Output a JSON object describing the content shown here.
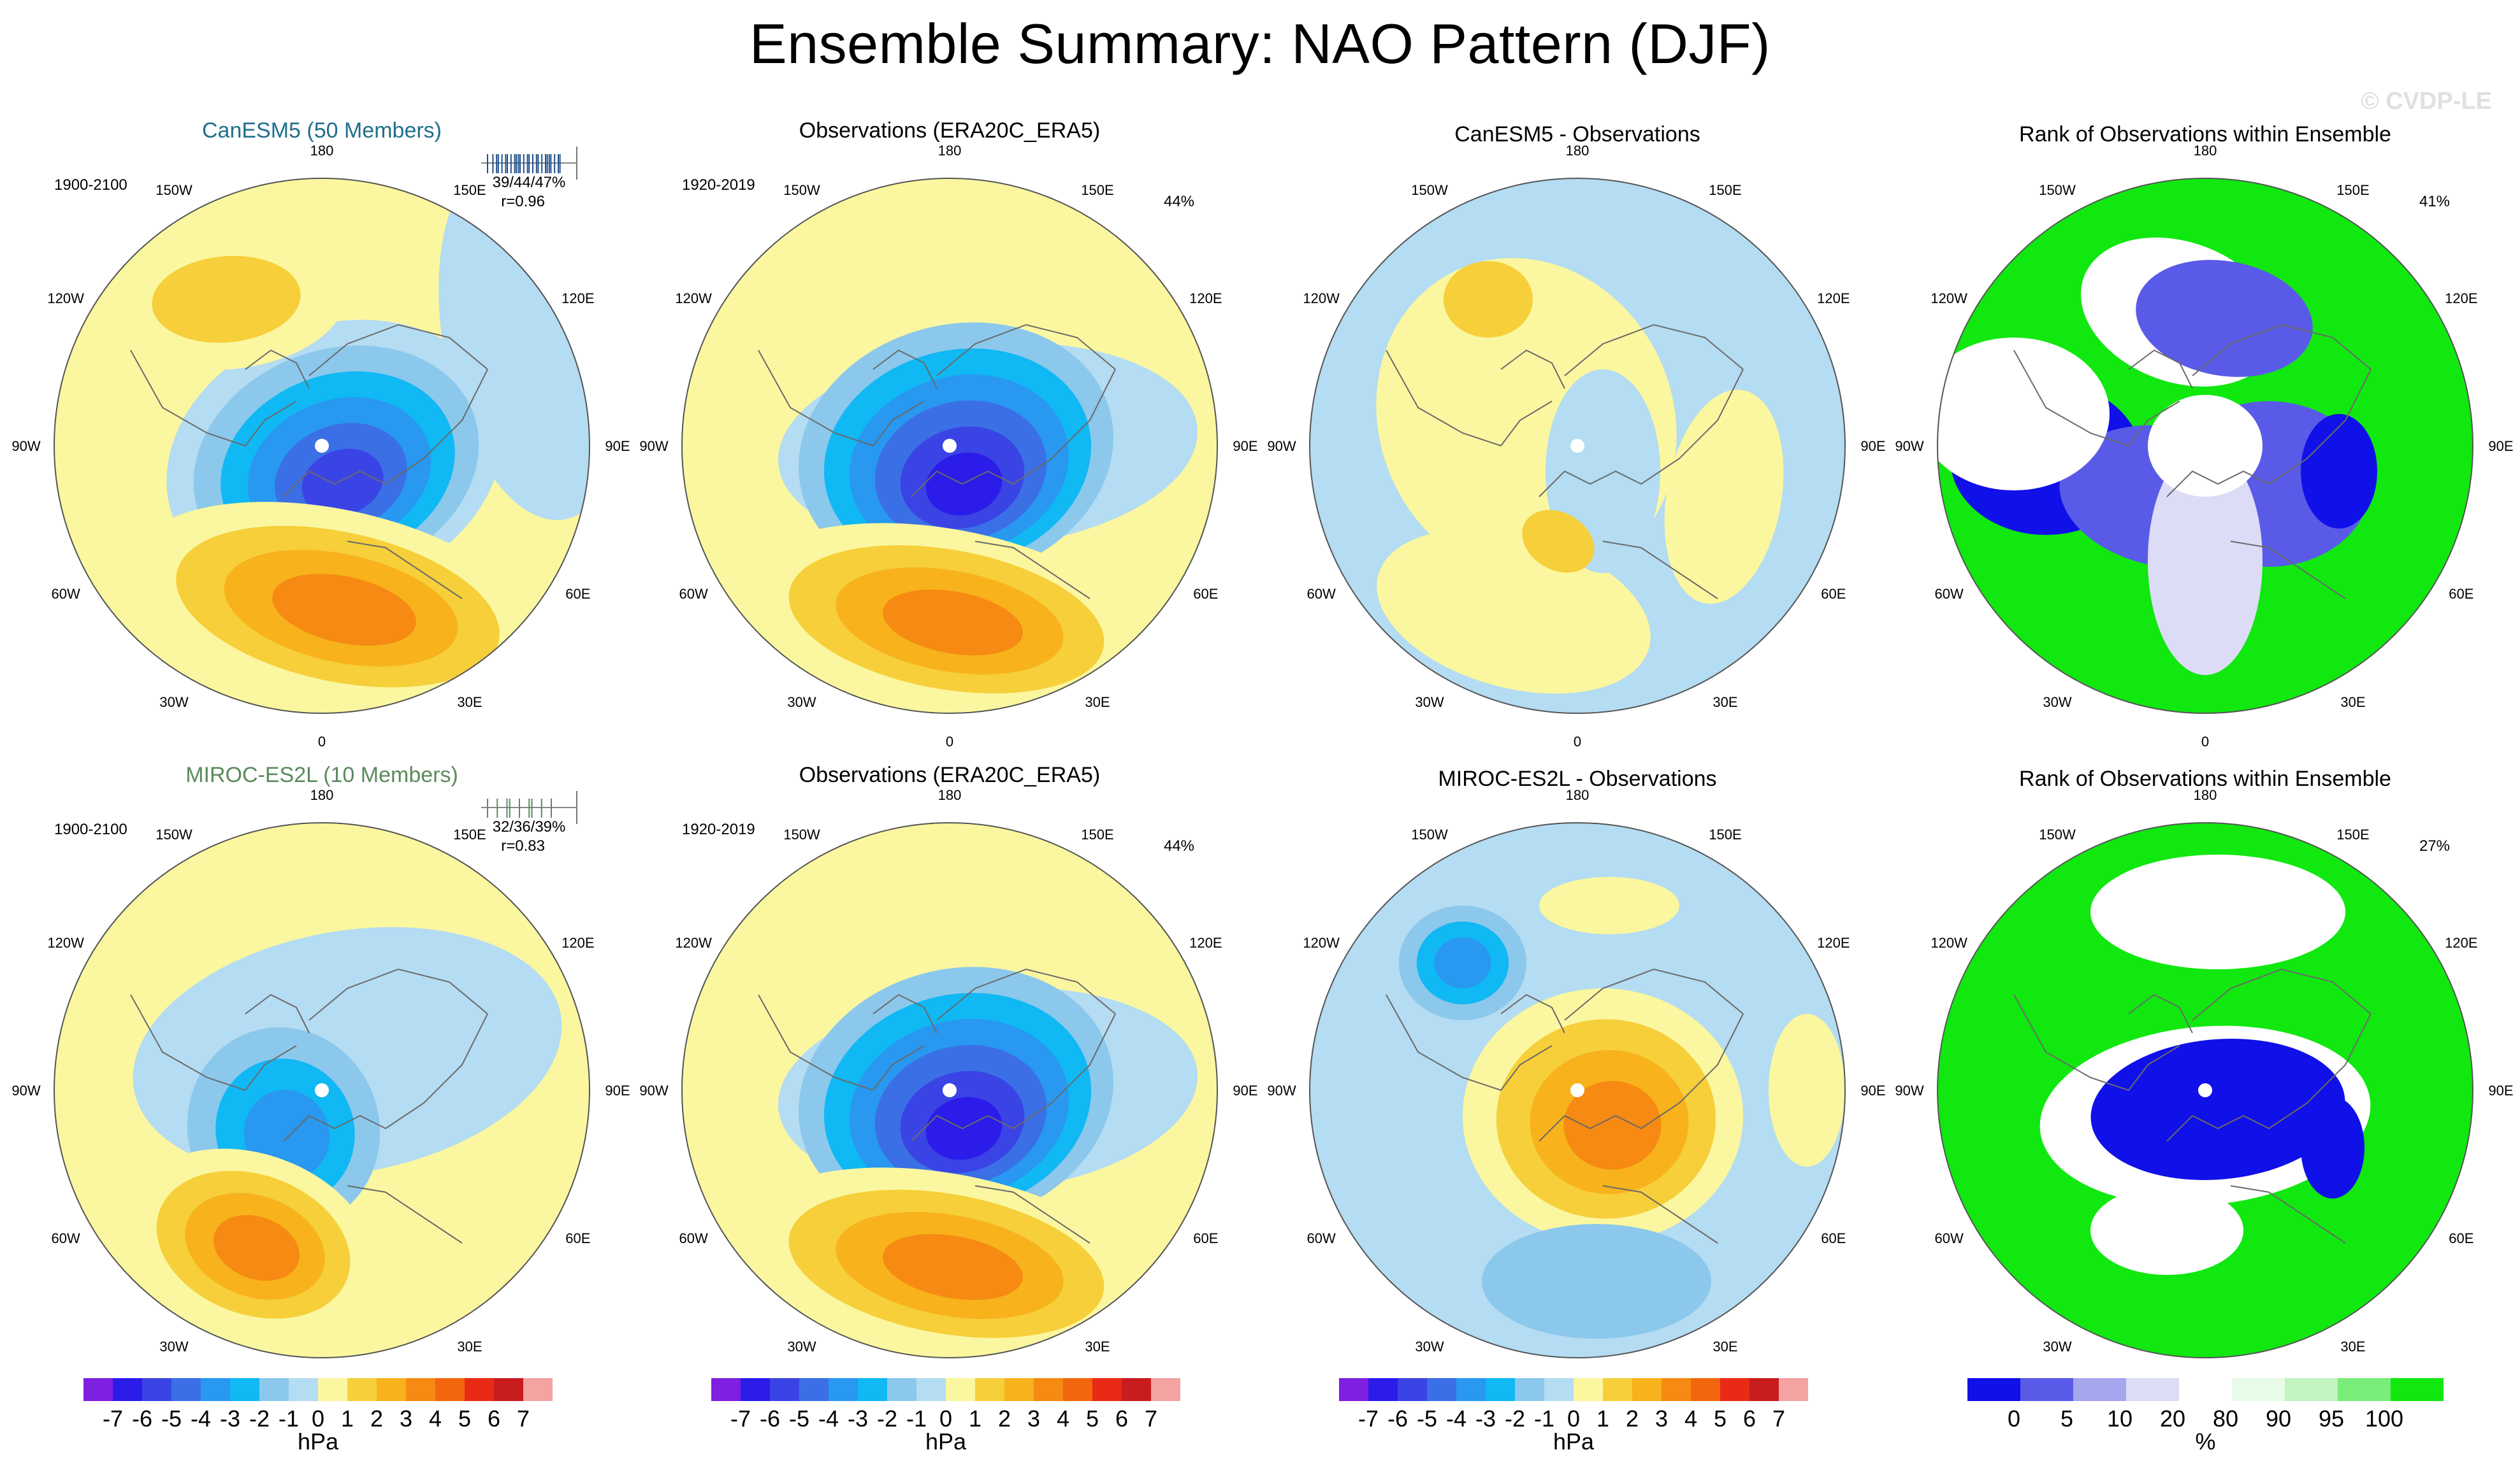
{
  "title": "Ensemble Summary: NAO Pattern (DJF)",
  "watermark": "© CVDP-LE",
  "colors": {
    "hpa_levels": [
      "#7f1fe0",
      "#2c1cea",
      "#3a44e4",
      "#3b6fe6",
      "#2898f0",
      "#10b8f4",
      "#8cc8ec",
      "#b4dcf2",
      "#fbf7a0",
      "#f6cf3a",
      "#f7b21c",
      "#f68a12",
      "#f2660e",
      "#e92a14",
      "#c81c1e",
      "#f4a2a2"
    ],
    "rank_levels": [
      "#1010e8",
      "#5a5ae8",
      "#a6a6ee",
      "#dcdcf6",
      "#ffffff",
      "#e8fbe8",
      "#c2f4c2",
      "#7aec7a",
      "#10e810"
    ],
    "canesm5_title": "#1f6f8b",
    "miroc_title": "#5b8a5b"
  },
  "lon_labels": {
    "top": "180",
    "bottom": "0",
    "w150": "150W",
    "e150": "150E",
    "w120": "120W",
    "e120": "120E",
    "w90": "90W",
    "e90": "90E",
    "w60": "60W",
    "e60": "60E",
    "w30": "30W",
    "e30": "30E"
  },
  "rows": [
    {
      "model_panel": {
        "title": "CanESM5 (50 Members)",
        "period": "1900-2100",
        "stats": "39/44/47%",
        "corr": "r=0.96"
      },
      "obs_panel": {
        "title": "Observations (ERA20C_ERA5)",
        "period": "1920-2019",
        "pct": "44%"
      },
      "diff_panel": {
        "title": "CanESM5 - Observations"
      },
      "rank_panel": {
        "title": "Rank of Observations within Ensemble",
        "pct": "41%"
      }
    },
    {
      "model_panel": {
        "title": "MIROC-ES2L (10 Members)",
        "period": "1900-2100",
        "stats": "32/36/39%",
        "corr": "r=0.83"
      },
      "obs_panel": {
        "title": "Observations (ERA20C_ERA5)",
        "period": "1920-2019",
        "pct": "44%"
      },
      "diff_panel": {
        "title": "MIROC-ES2L - Observations"
      },
      "rank_panel": {
        "title": "Rank of Observations within Ensemble",
        "pct": "27%"
      }
    }
  ],
  "colorbar_hpa": {
    "labels": [
      "-7",
      "-6",
      "-5",
      "-4",
      "-3",
      "-2",
      "-1",
      "0",
      "1",
      "2",
      "3",
      "4",
      "5",
      "6",
      "7"
    ],
    "unit": "hPa"
  },
  "colorbar_rank": {
    "labels": [
      "0",
      "5",
      "10",
      "20",
      "80",
      "90",
      "95",
      "100"
    ],
    "unit": "%"
  },
  "chart_data": {
    "type": "heatmap",
    "title": "Ensemble Summary: NAO Pattern (DJF)",
    "projection": "north polar stereographic",
    "variable": "sea level pressure NAO pattern",
    "units": "hPa",
    "contour_levels": [
      -7,
      -6,
      -5,
      -4,
      -3,
      -2,
      -1,
      0,
      1,
      2,
      3,
      4,
      5,
      6,
      7
    ],
    "rank_levels_percent": [
      0,
      5,
      10,
      20,
      80,
      90,
      95,
      100
    ],
    "panels": [
      {
        "name": "CanESM5 (50 Members)",
        "period": "1900-2100",
        "pct_explained_min_mean_max": [
          39,
          44,
          47
        ],
        "pattern_correlation": 0.96,
        "center_min_hPa": -6,
        "center_max_hPa": 4
      },
      {
        "name": "Observations (ERA20C_ERA5)",
        "period": "1920-2019",
        "pct_explained": 44,
        "center_min_hPa": -7,
        "center_max_hPa": 4
      },
      {
        "name": "CanESM5 - Observations",
        "center_min_hPa": -1,
        "center_max_hPa": 2
      },
      {
        "name": "Rank of Observations within Ensemble",
        "pct": 41
      },
      {
        "name": "MIROC-ES2L (10 Members)",
        "period": "1900-2100",
        "pct_explained_min_mean_max": [
          32,
          36,
          39
        ],
        "pattern_correlation": 0.83,
        "center_min_hPa": -4,
        "center_max_hPa": 4
      },
      {
        "name": "Observations (ERA20C_ERA5)",
        "period": "1920-2019",
        "pct_explained": 44,
        "center_min_hPa": -7,
        "center_max_hPa": 4
      },
      {
        "name": "MIROC-ES2L - Observations",
        "center_min_hPa": -3,
        "center_max_hPa": 4
      },
      {
        "name": "Rank of Observations within Ensemble",
        "pct": 27
      }
    ]
  }
}
